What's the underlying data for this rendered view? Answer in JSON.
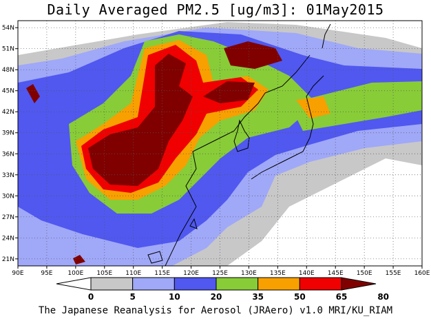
{
  "title": "Daily Averaged PM2.5 [ug/m3]: 01May2015",
  "credit": "The Japanese Reanalysis for Aerosol (JRAero) v1.0 MRI/KU_RIAM",
  "map": {
    "lon_range": [
      90,
      160
    ],
    "lat_range": [
      20,
      55
    ],
    "x_ticks": [
      "90E",
      "95E",
      "100E",
      "105E",
      "110E",
      "115E",
      "120E",
      "125E",
      "130E",
      "135E",
      "140E",
      "145E",
      "150E",
      "155E",
      "160E"
    ],
    "y_ticks": [
      "21N",
      "24N",
      "27N",
      "30N",
      "33N",
      "36N",
      "39N",
      "42N",
      "45N",
      "48N",
      "51N",
      "54N"
    ],
    "grid": "dotted"
  },
  "colorbar": {
    "labels": [
      "0",
      "5",
      "10",
      "20",
      "35",
      "50",
      "65",
      "80"
    ],
    "colors": [
      "#ffffff",
      "#c8c8c8",
      "#a0a8f8",
      "#5058f0",
      "#88cc38",
      "#f8a000",
      "#f00000",
      "#800000"
    ]
  }
}
